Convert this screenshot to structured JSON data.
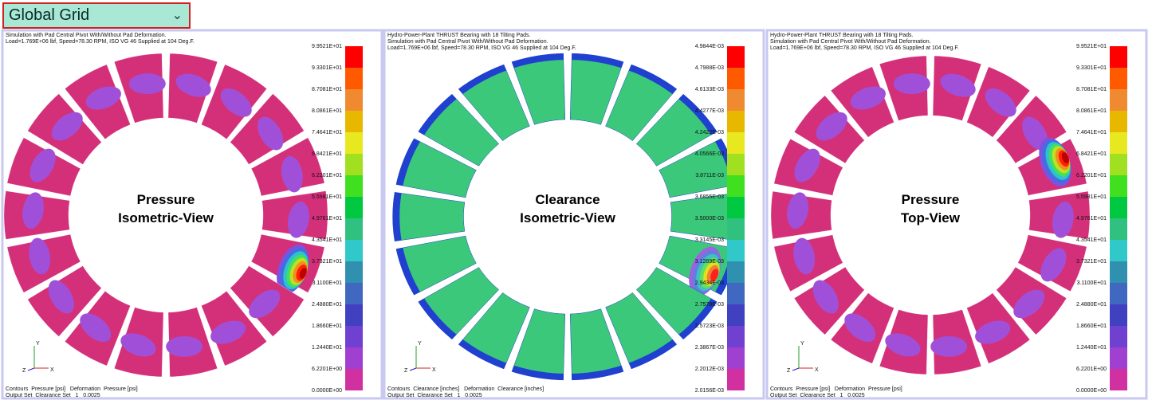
{
  "dropdown": {
    "label": "Global Grid"
  },
  "panels": [
    {
      "header": [
        "Simulation with Pad Central Pivot With/Without Pad Deformation.",
        "Load=1.769E+06 lbf, Speed=78.30 RPM, ISO VG 46 Supplied at 104 Deg.F."
      ],
      "title": [
        "Pressure",
        "Isometric-View"
      ],
      "legend": [
        "9.9521E+01",
        "9.3301E+01",
        "8.7081E+01",
        "8.0861E+01",
        "7.4641E+01",
        "6.8421E+01",
        "6.2201E+01",
        "5.5981E+01",
        "4.9761E+01",
        "4.3541E+01",
        "3.7321E+01",
        "3.1100E+01",
        "2.4880E+01",
        "1.8660E+01",
        "1.2440E+01",
        "6.2201E+00",
        "0.0000E+00"
      ],
      "triad": [
        "Y",
        "Z",
        "X"
      ],
      "footer": [
        "Contours  Pressure [psi]   Deformation  Pressure [psi]",
        "Output Set  Clearance Set   1   0.0025"
      ]
    },
    {
      "header": [
        "Hydro-Power-Plant THRUST Bearing with 18 Tilting Pads.",
        "Simulation with Pad Central Pivot With/Without Pad Deformation.",
        "Load=1.769E+06 lbf, Speed=78.30 RPM, ISO VG 46 Supplied at 104 Deg.F."
      ],
      "title": [
        "Clearance",
        "Isometric-View"
      ],
      "legend": [
        "4.9844E-03",
        "4.7988E-03",
        "4.6133E-03",
        "4.4277E-03",
        "4.2422E-03",
        "4.0566E-03",
        "3.8711E-03",
        "3.6855E-03",
        "3.5000E-03",
        "3.3145E-03",
        "3.1289E-03",
        "2.9434E-03",
        "2.7578E-03",
        "2.5723E-03",
        "2.3867E-03",
        "2.2012E-03",
        "2.0156E-03"
      ],
      "triad": [
        "Y",
        "Z",
        "X"
      ],
      "footer": [
        "Contours  Clearance [inches]   Deformation  Clearance [inches]",
        "Output Set  Clearance Set   1   0.0025"
      ]
    },
    {
      "header": [
        "Hydro-Power-Plant THRUST Bearing with 18 Tilting Pads.",
        "Simulation with Pad Central Pivot With/Without Pad Deformation.",
        "Load=1.769E+06 lbf, Speed=78.30 RPM, ISO VG 46 Supplied at 104 Deg.F."
      ],
      "title": [
        "Pressure",
        "Top-View"
      ],
      "legend": [
        "9.9521E+01",
        "9.3301E+01",
        "8.7081E+01",
        "8.0861E+01",
        "7.4641E+01",
        "6.8421E+01",
        "6.2201E+01",
        "5.5981E+01",
        "4.9761E+01",
        "4.3541E+01",
        "3.7321E+01",
        "3.1100E+01",
        "2.4880E+01",
        "1.8660E+01",
        "1.2440E+01",
        "6.2201E+00",
        "0.0000E+00"
      ],
      "triad": [
        "Y",
        "Z",
        "X"
      ],
      "footer": [
        "Contours  Pressure [psi]   Deformation  Pressure [psi]",
        "Output Set  Clearance Set   1   0.0025"
      ]
    }
  ]
}
